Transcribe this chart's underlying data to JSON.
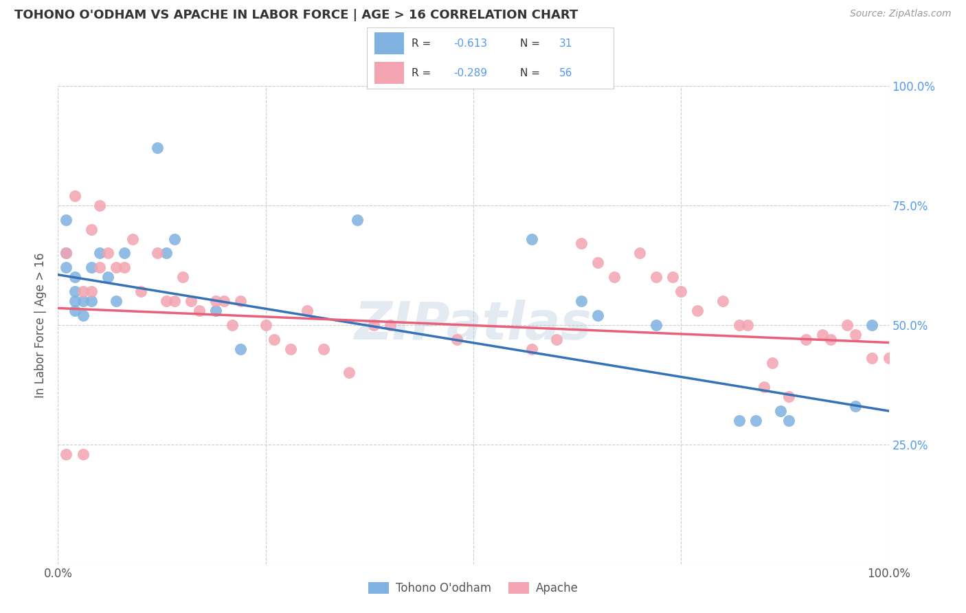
{
  "title": "TOHONO O'ODHAM VS APACHE IN LABOR FORCE | AGE > 16 CORRELATION CHART",
  "source": "Source: ZipAtlas.com",
  "ylabel": "In Labor Force | Age > 16",
  "xlim": [
    0.0,
    1.0
  ],
  "ylim": [
    0.0,
    1.0
  ],
  "watermark": "ZIPatlas",
  "blue_R": -0.613,
  "blue_N": 31,
  "pink_R": -0.289,
  "pink_N": 56,
  "blue_color": "#7EB2E0",
  "pink_color": "#F4A4B0",
  "blue_line_color": "#3572B8",
  "pink_line_color": "#E8607A",
  "background_color": "#FFFFFF",
  "grid_color": "#CCCCCC",
  "title_color": "#333333",
  "source_color": "#999999",
  "right_ytick_color": "#5599EE",
  "tohono_x": [
    0.01,
    0.01,
    0.01,
    0.02,
    0.02,
    0.02,
    0.02,
    0.03,
    0.03,
    0.04,
    0.04,
    0.05,
    0.06,
    0.07,
    0.08,
    0.12,
    0.13,
    0.14,
    0.19,
    0.22,
    0.36,
    0.57,
    0.63,
    0.65,
    0.72,
    0.82,
    0.84,
    0.87,
    0.88,
    0.96,
    0.98
  ],
  "tohono_y": [
    0.72,
    0.65,
    0.62,
    0.6,
    0.57,
    0.55,
    0.53,
    0.55,
    0.52,
    0.62,
    0.55,
    0.65,
    0.6,
    0.55,
    0.65,
    0.87,
    0.65,
    0.68,
    0.53,
    0.45,
    0.72,
    0.68,
    0.55,
    0.52,
    0.5,
    0.3,
    0.3,
    0.32,
    0.3,
    0.33,
    0.5
  ],
  "apache_x": [
    0.01,
    0.01,
    0.02,
    0.03,
    0.03,
    0.04,
    0.04,
    0.05,
    0.05,
    0.06,
    0.07,
    0.08,
    0.09,
    0.1,
    0.12,
    0.13,
    0.14,
    0.15,
    0.16,
    0.17,
    0.19,
    0.2,
    0.21,
    0.22,
    0.25,
    0.26,
    0.28,
    0.3,
    0.32,
    0.35,
    0.38,
    0.4,
    0.48,
    0.57,
    0.6,
    0.63,
    0.65,
    0.67,
    0.7,
    0.72,
    0.74,
    0.75,
    0.77,
    0.8,
    0.82,
    0.83,
    0.85,
    0.86,
    0.88,
    0.9,
    0.92,
    0.93,
    0.95,
    0.96,
    0.98,
    1.0
  ],
  "apache_y": [
    0.23,
    0.65,
    0.77,
    0.23,
    0.57,
    0.57,
    0.7,
    0.75,
    0.62,
    0.65,
    0.62,
    0.62,
    0.68,
    0.57,
    0.65,
    0.55,
    0.55,
    0.6,
    0.55,
    0.53,
    0.55,
    0.55,
    0.5,
    0.55,
    0.5,
    0.47,
    0.45,
    0.53,
    0.45,
    0.4,
    0.5,
    0.5,
    0.47,
    0.45,
    0.47,
    0.67,
    0.63,
    0.6,
    0.65,
    0.6,
    0.6,
    0.57,
    0.53,
    0.55,
    0.5,
    0.5,
    0.37,
    0.42,
    0.35,
    0.47,
    0.48,
    0.47,
    0.5,
    0.48,
    0.43,
    0.43
  ]
}
